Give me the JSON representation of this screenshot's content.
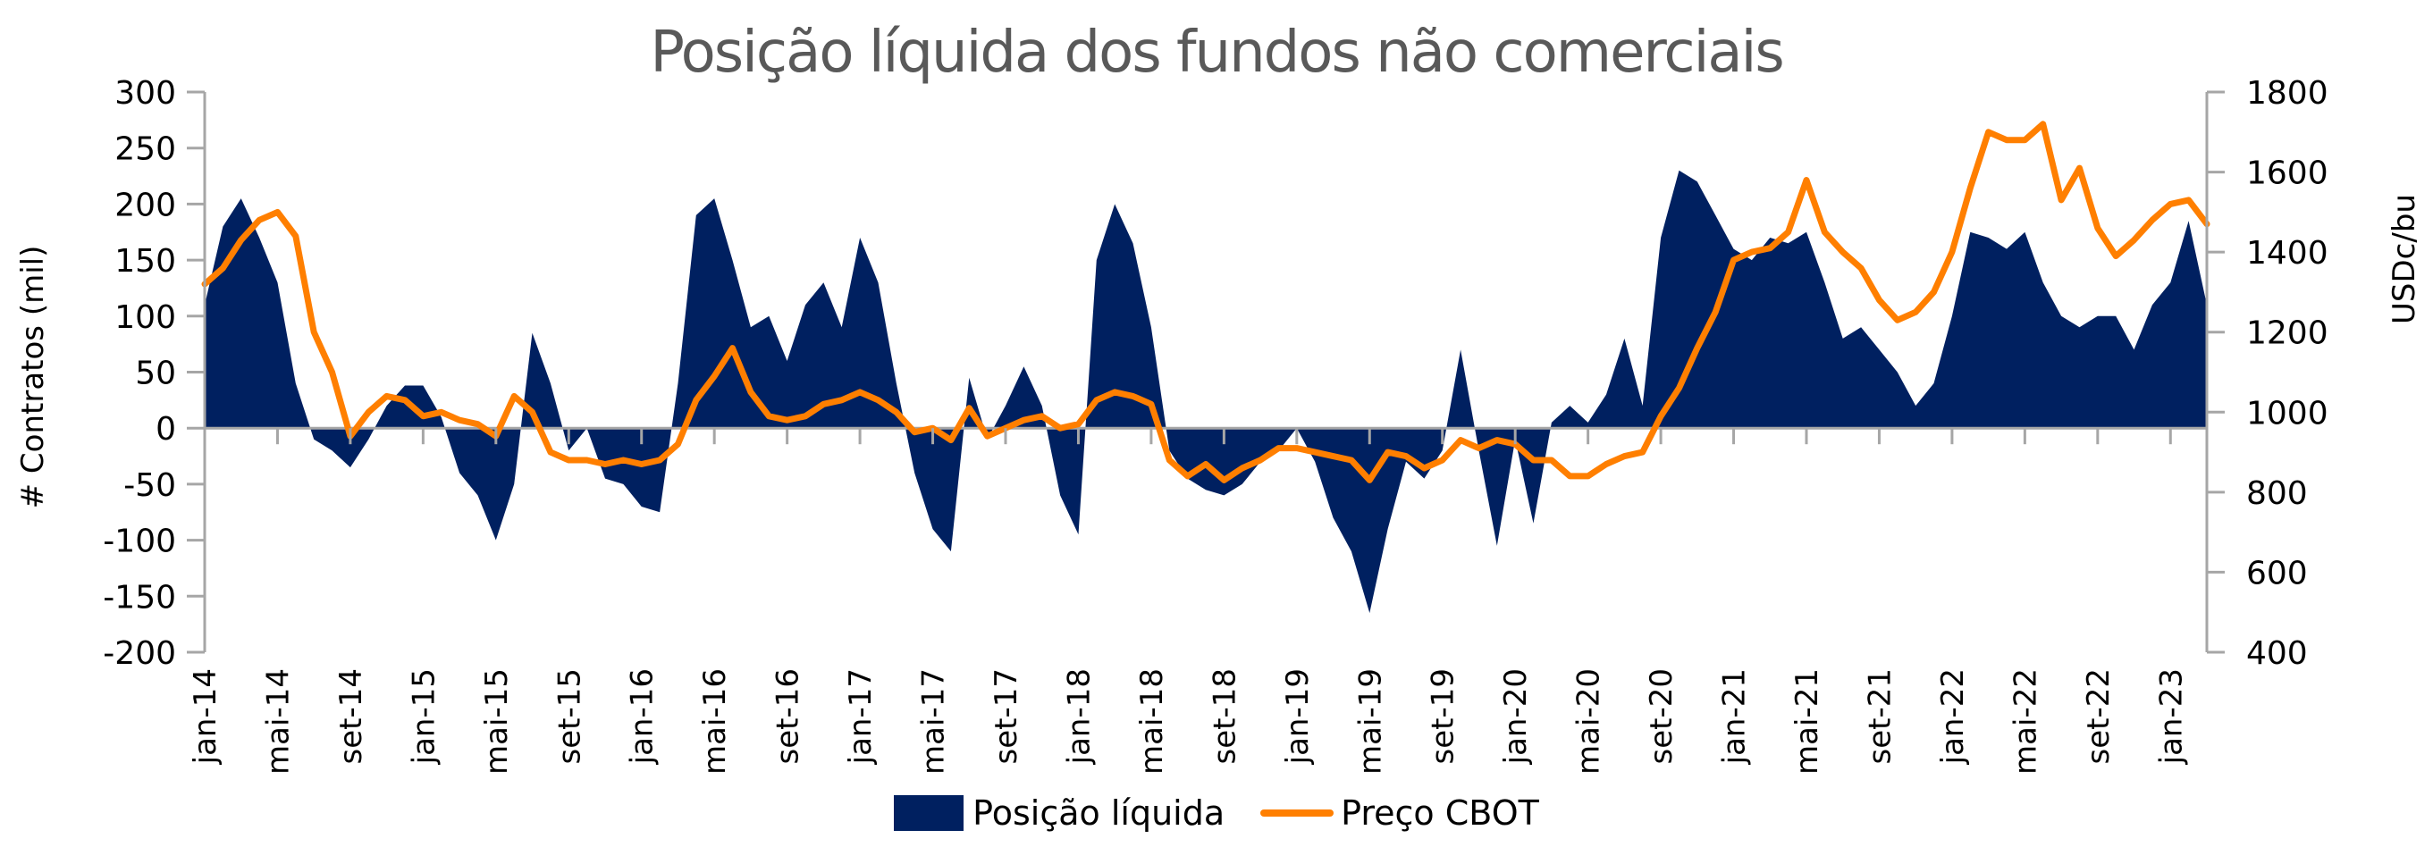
{
  "chart_data": {
    "type": "area+line",
    "title": "Posição  líquida dos fundos não comerciais",
    "ylabel": "# Contratos (mil)",
    "ylabel_right": "USDc/bu",
    "ylim": [
      -200,
      300
    ],
    "ylim_right": [
      400,
      1800
    ],
    "yticks": [
      "300",
      "250",
      "200",
      "150",
      "100",
      "50",
      "0",
      "-50",
      "-100",
      "-150",
      "-200"
    ],
    "yticks_right": [
      "1800",
      "1600",
      "1400",
      "1200",
      "1000",
      "800",
      "600",
      "400"
    ],
    "xtick_labels": [
      "jan-14",
      "mai-14",
      "set-14",
      "jan-15",
      "mai-15",
      "set-15",
      "jan-16",
      "mai-16",
      "set-16",
      "jan-17",
      "mai-17",
      "set-17",
      "jan-18",
      "mai-18",
      "set-18",
      "jan-19",
      "mai-19",
      "set-19",
      "jan-20",
      "mai-20",
      "set-20",
      "jan-21",
      "mai-21",
      "set-21",
      "jan-22",
      "mai-22",
      "set-22",
      "jan-23"
    ],
    "x_start": "jan-14",
    "x_end": "mar-23",
    "frequency": "monthly",
    "grid": false,
    "legend_position": "bottom",
    "series": [
      {
        "name": "Posição líquida",
        "type": "area",
        "axis": "left",
        "color": "#002060",
        "values": [
          110,
          180,
          205,
          170,
          130,
          40,
          -10,
          -20,
          -35,
          -10,
          20,
          38,
          38,
          10,
          -40,
          -60,
          -100,
          -50,
          85,
          40,
          -20,
          0,
          -45,
          -50,
          -70,
          -75,
          40,
          190,
          205,
          150,
          90,
          100,
          60,
          110,
          130,
          90,
          170,
          130,
          40,
          -40,
          -90,
          -110,
          45,
          -10,
          20,
          55,
          20,
          -60,
          -95,
          150,
          200,
          165,
          90,
          -20,
          -45,
          -55,
          -60,
          -50,
          -30,
          -20,
          0,
          -30,
          -80,
          -110,
          -165,
          -90,
          -30,
          -45,
          -20,
          70,
          -20,
          -105,
          -10,
          -85,
          5,
          20,
          5,
          30,
          80,
          20,
          170,
          230,
          220,
          190,
          160,
          150,
          170,
          165,
          175,
          130,
          80,
          90,
          70,
          50,
          20,
          40,
          100,
          175,
          170,
          160,
          175,
          130,
          100,
          90,
          100,
          100,
          70,
          110,
          130,
          185,
          110
        ]
      },
      {
        "name": "Preço CBOT",
        "type": "line",
        "axis": "right",
        "color": "#FF7F00",
        "values": [
          1320,
          1360,
          1430,
          1480,
          1500,
          1440,
          1200,
          1100,
          940,
          1000,
          1040,
          1030,
          990,
          1000,
          980,
          970,
          940,
          1040,
          1000,
          900,
          880,
          880,
          870,
          880,
          870,
          880,
          920,
          1030,
          1090,
          1160,
          1050,
          990,
          980,
          990,
          1020,
          1030,
          1050,
          1030,
          1000,
          950,
          960,
          930,
          1010,
          940,
          960,
          980,
          990,
          960,
          970,
          1030,
          1050,
          1040,
          1020,
          880,
          840,
          870,
          830,
          860,
          880,
          910,
          910,
          900,
          890,
          880,
          830,
          900,
          890,
          860,
          880,
          930,
          910,
          930,
          920,
          880,
          880,
          840,
          840,
          870,
          890,
          900,
          990,
          1060,
          1160,
          1250,
          1380,
          1400,
          1410,
          1450,
          1580,
          1450,
          1400,
          1360,
          1280,
          1230,
          1250,
          1300,
          1400,
          1560,
          1700,
          1680,
          1680,
          1720,
          1530,
          1610,
          1460,
          1390,
          1430,
          1480,
          1520,
          1530,
          1470
        ]
      }
    ]
  },
  "legend": {
    "items": [
      {
        "label": "Posição líquida",
        "color": "#002060"
      },
      {
        "label": "Preço CBOT",
        "color": "#FF7F00"
      }
    ]
  }
}
